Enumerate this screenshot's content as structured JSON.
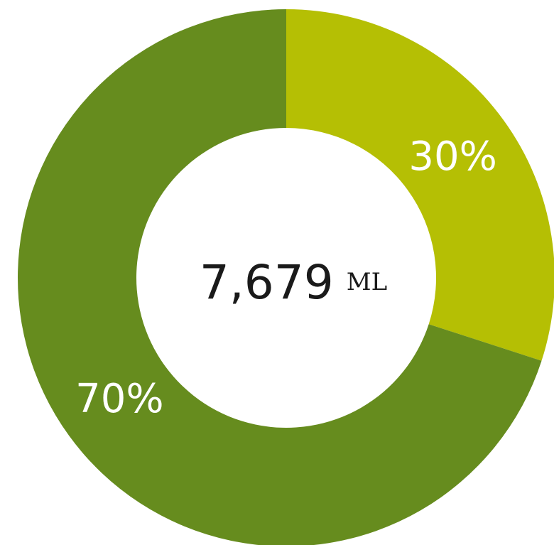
{
  "chart_data": {
    "type": "pie",
    "variant": "donut",
    "slices": [
      {
        "label": "30%",
        "value": 30,
        "color": "#b5bf04"
      },
      {
        "label": "70%",
        "value": 70,
        "color": "#668c1e"
      }
    ],
    "center": {
      "value": "7,679",
      "unit": "ML"
    }
  }
}
